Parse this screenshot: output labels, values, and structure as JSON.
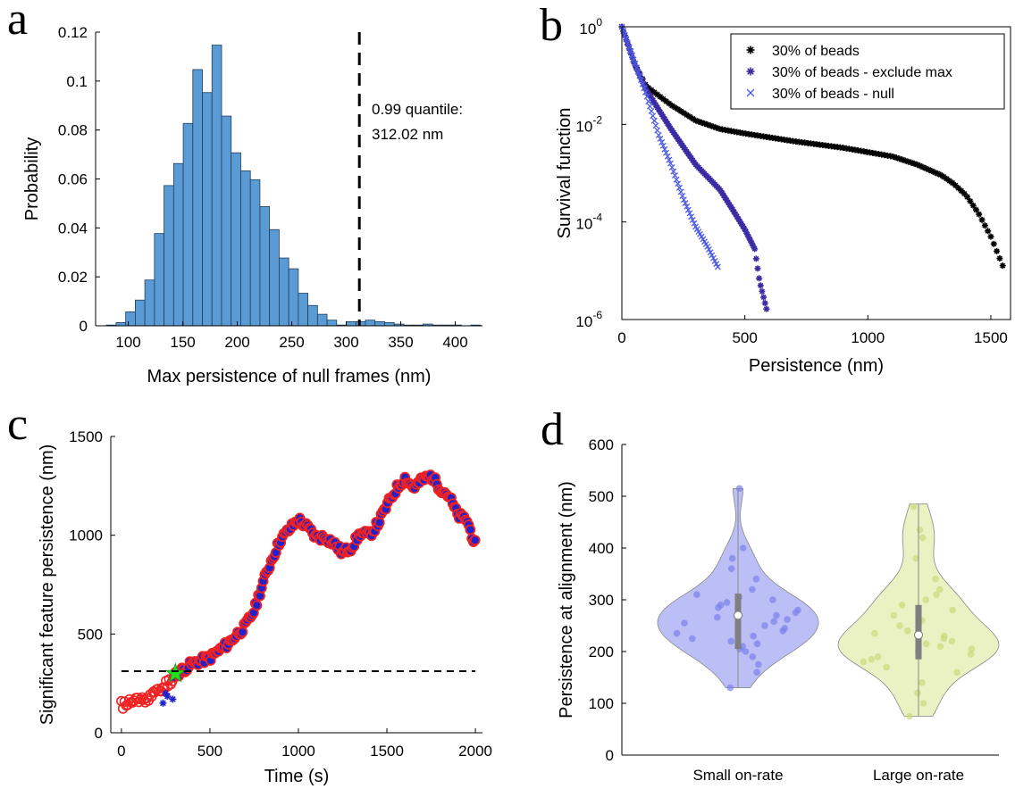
{
  "panels": [
    {
      "label": "a",
      "chart_data": {
        "type": "bar",
        "title": "",
        "xlabel": "Max persistence of null frames (nm)",
        "ylabel": "Probability",
        "xlim": [
          70,
          425
        ],
        "ylim": [
          0,
          0.12
        ],
        "xticks": [
          100,
          150,
          200,
          250,
          300,
          350,
          400
        ],
        "yticks": [
          0,
          0.02,
          0.04,
          0.06,
          0.08,
          0.1,
          0.12
        ],
        "ytick_labels": [
          "0",
          "0.02",
          "0.04",
          "0.06",
          "0.08",
          "0.1",
          "0.12"
        ],
        "bin_width": 8.8,
        "bin_start": 80,
        "values": [
          0.0003,
          0.0013,
          0.0057,
          0.0105,
          0.0187,
          0.0377,
          0.0573,
          0.0663,
          0.0827,
          0.1047,
          0.0953,
          0.1147,
          0.0857,
          0.0707,
          0.0633,
          0.0597,
          0.0487,
          0.0393,
          0.0277,
          0.0233,
          0.0133,
          0.0083,
          0.0047,
          0.0023,
          0.0003,
          0.0017,
          0.0017,
          0.0023,
          0.0017,
          0.0013,
          0.0007,
          0.0003,
          0.0003,
          0.0007,
          0.0003,
          0.0003,
          0.0003,
          0.0,
          0.0003
        ],
        "quantile_line": 312.02,
        "annotation": [
          "0.99 quantile:",
          "312.02 nm"
        ],
        "bar_color": "#5b9bd5",
        "grid": false
      }
    },
    {
      "label": "b",
      "chart_data": {
        "type": "scatter",
        "title": "",
        "xlabel": "Persistence (nm)",
        "ylabel": "Survival function",
        "xlim": [
          0,
          1580
        ],
        "ylim": [
          1e-06,
          1
        ],
        "yscale": "log",
        "xticks": [
          0,
          500,
          1000,
          1500
        ],
        "yticks": [
          {
            "base": "10",
            "exp": "0",
            "value": 1
          },
          {
            "base": "10",
            "exp": "-2",
            "value": 0.01
          },
          {
            "base": "10",
            "exp": "-4",
            "value": 0.0001
          },
          {
            "base": "10",
            "exp": "-6",
            "value": 1e-06
          }
        ],
        "legend_position": "top-right",
        "series": [
          {
            "name": "30% of beads",
            "marker": "*",
            "color": "#000000",
            "curve": [
              [
                0,
                1
              ],
              [
                50,
                0.18
              ],
              [
                100,
                0.06
              ],
              [
                200,
                0.025
              ],
              [
                300,
                0.012
              ],
              [
                400,
                0.008
              ],
              [
                500,
                0.0065
              ],
              [
                700,
                0.0045
              ],
              [
                900,
                0.0033
              ],
              [
                1100,
                0.0022
              ],
              [
                1200,
                0.0015
              ],
              [
                1300,
                0.0009
              ],
              [
                1350,
                0.0006
              ],
              [
                1400,
                0.00035
              ],
              [
                1450,
                0.00015
              ],
              [
                1500,
                5e-05
              ],
              [
                1550,
                1.2e-05
              ]
            ]
          },
          {
            "name": "30% of beads - exclude max",
            "marker": "*",
            "color": "#3b2ba3",
            "curve": [
              [
                0,
                1
              ],
              [
                50,
                0.18
              ],
              [
                100,
                0.05
              ],
              [
                200,
                0.008
              ],
              [
                300,
                0.0015
              ],
              [
                400,
                0.00045
              ],
              [
                450,
                0.00018
              ],
              [
                500,
                7e-05
              ],
              [
                540,
                2.8e-05
              ],
              [
                560,
                6e-06
              ],
              [
                575,
                3e-06
              ],
              [
                590,
                1.5e-06
              ]
            ]
          },
          {
            "name": "30% of beads - null",
            "marker": "x",
            "color": "#4d5ce6",
            "curve": [
              [
                0,
                1
              ],
              [
                50,
                0.2
              ],
              [
                100,
                0.04
              ],
              [
                150,
                0.006
              ],
              [
                200,
                0.0015
              ],
              [
                250,
                0.0003
              ],
              [
                300,
                8e-05
              ],
              [
                350,
                3e-05
              ],
              [
                390,
                1.2e-05
              ]
            ]
          }
        ],
        "grid": false
      }
    },
    {
      "label": "c",
      "chart_data": {
        "type": "scatter",
        "title": "",
        "xlabel": "Time (s)",
        "ylabel": "Significant feature persistence (nm)",
        "xlim": [
          -60,
          2040
        ],
        "ylim": [
          0,
          1500
        ],
        "xticks": [
          0,
          500,
          1000,
          1500,
          2000
        ],
        "yticks": [
          0,
          500,
          1000,
          1500
        ],
        "threshold": 312.02,
        "star": {
          "x": 305,
          "y": 300,
          "color": "#22dd22"
        },
        "curve": [
          [
            0,
            140
          ],
          [
            100,
            165
          ],
          [
            200,
            200
          ],
          [
            260,
            250
          ],
          [
            300,
            290
          ],
          [
            400,
            350
          ],
          [
            500,
            380
          ],
          [
            600,
            450
          ],
          [
            700,
            540
          ],
          [
            750,
            620
          ],
          [
            800,
            760
          ],
          [
            850,
            880
          ],
          [
            900,
            980
          ],
          [
            950,
            1030
          ],
          [
            1000,
            1080
          ],
          [
            1050,
            1040
          ],
          [
            1100,
            990
          ],
          [
            1150,
            990
          ],
          [
            1200,
            960
          ],
          [
            1250,
            910
          ],
          [
            1300,
            940
          ],
          [
            1350,
            1010
          ],
          [
            1400,
            1000
          ],
          [
            1450,
            1060
          ],
          [
            1500,
            1150
          ],
          [
            1550,
            1230
          ],
          [
            1600,
            1290
          ],
          [
            1650,
            1240
          ],
          [
            1700,
            1280
          ],
          [
            1750,
            1300
          ],
          [
            1800,
            1240
          ],
          [
            1850,
            1200
          ],
          [
            1900,
            1100
          ],
          [
            1950,
            1080
          ],
          [
            2000,
            950
          ]
        ],
        "red_outline_color": "#ee2222",
        "blue_fill_color": "#2222cc",
        "grid": false
      }
    },
    {
      "label": "d",
      "chart_data": {
        "type": "violin",
        "title": "",
        "xlabel": "",
        "ylabel": "Persistence at alignment (nm)",
        "ylim": [
          0,
          600
        ],
        "yticks": [
          0,
          100,
          200,
          300,
          400,
          500,
          600
        ],
        "categories": [
          "Small on-rate",
          "Large on-rate"
        ],
        "series": [
          {
            "name": "Small on-rate",
            "color": "#a6a9f2",
            "dot_color": "#7b80ea",
            "min": 130,
            "max": 515,
            "q1": 205,
            "median": 270,
            "q3": 312,
            "points": [
              130,
              160,
              175,
              190,
              200,
              205,
              210,
              215,
              220,
              225,
              230,
              235,
              240,
              245,
              250,
              255,
              258,
              262,
              266,
              270,
              275,
              280,
              285,
              290,
              295,
              300,
              305,
              310,
              320,
              340,
              360,
              380,
              400,
              515
            ]
          },
          {
            "name": "Large on-rate",
            "color": "#e3edb0",
            "dot_color": "#c8db7a",
            "min": 75,
            "max": 485,
            "q1": 185,
            "median": 232,
            "q3": 290,
            "points": [
              75,
              100,
              120,
              140,
              160,
              170,
              180,
              185,
              190,
              195,
              200,
              205,
              210,
              215,
              220,
              225,
              230,
              235,
              240,
              250,
              260,
              270,
              280,
              290,
              300,
              310,
              320,
              340,
              380,
              420,
              435,
              480
            ]
          }
        ],
        "grid": false
      }
    }
  ]
}
